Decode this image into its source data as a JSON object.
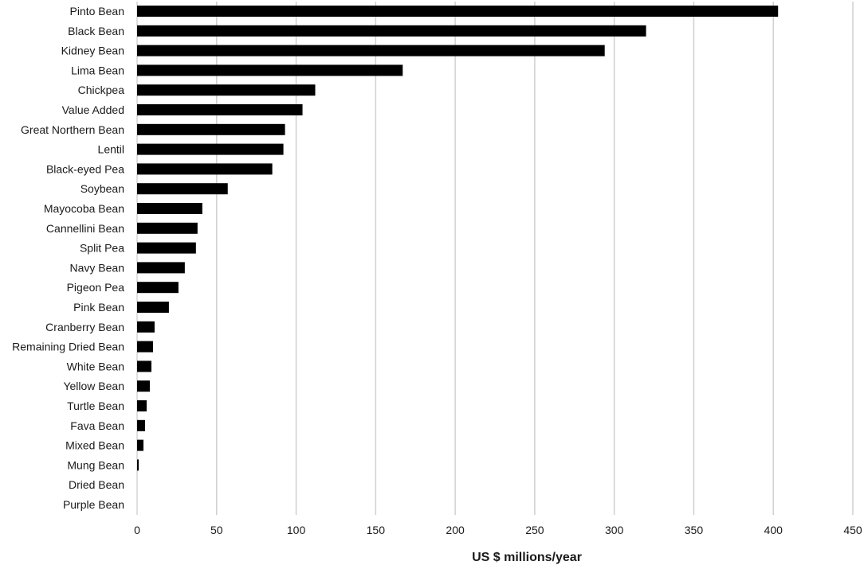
{
  "chart_data": {
    "type": "bar",
    "orientation": "horizontal",
    "categories": [
      "Pinto Bean",
      "Black Bean",
      "Kidney Bean",
      "Lima Bean",
      "Chickpea",
      "Value Added",
      "Great Northern Bean",
      "Lentil",
      "Black-eyed Pea",
      "Soybean",
      "Mayocoba Bean",
      "Cannellini Bean",
      "Split Pea",
      "Navy Bean",
      "Pigeon Pea",
      "Pink Bean",
      "Cranberry Bean",
      "Remaining Dried Bean",
      "White Bean",
      "Yellow Bean",
      "Turtle Bean",
      "Fava Bean",
      "Mixed Bean",
      "Mung Bean",
      "Dried Bean",
      "Purple Bean"
    ],
    "values": [
      403,
      320,
      294,
      167,
      112,
      104,
      93,
      92,
      85,
      57,
      41,
      38,
      37,
      30,
      26,
      20,
      11,
      10,
      9,
      8,
      6,
      5,
      4,
      1,
      0,
      0
    ],
    "xlabel": "US $ millions/year",
    "ylabel": "",
    "xlim": [
      0,
      450
    ],
    "x_ticks": [
      0,
      50,
      100,
      150,
      200,
      250,
      300,
      350,
      400,
      450
    ],
    "grid": true,
    "bar_color": "#000000",
    "grid_color": "#d0d0d0"
  }
}
